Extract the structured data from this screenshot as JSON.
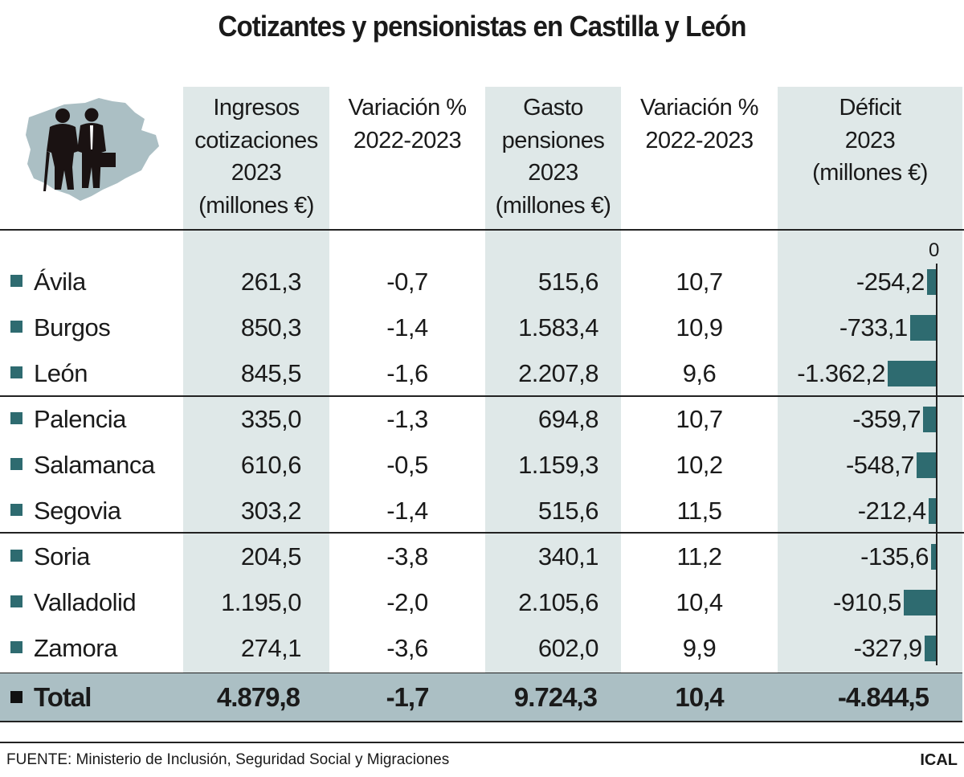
{
  "title": "Cotizantes y pensionistas en Castilla y León",
  "headers": [
    "Ingresos\ncotizaciones\n2023\n(millones €)",
    "Variación %\n2022-2023",
    "Gasto\npensiones\n2023\n(millones €)",
    "Variación %\n2022-2023",
    "Déficit\n2023\n(millones €)"
  ],
  "icon": "castilla-leon-map-with-pensioner-and-worker-icon",
  "colors": {
    "shade": "#dfe8e8",
    "bar": "#2e6b70",
    "total_band": "#abbfc4"
  },
  "chart_data": {
    "type": "table",
    "title": "Cotizantes y pensionistas en Castilla y León",
    "columns": [
      "Ingresos cotizaciones 2023 (millones €)",
      "Variación % 2022-2023",
      "Gasto pensiones 2023 (millones €)",
      "Variación % 2022-2023",
      "Déficit 2023 (millones €)"
    ],
    "bar_axis_label": "0",
    "rows": [
      {
        "name": "Ávila",
        "ingresos": "261,3",
        "var1": "-0,7",
        "gasto": "515,6",
        "var2": "10,7",
        "deficit": "-254,2",
        "deficit_value": -254.2
      },
      {
        "name": "Burgos",
        "ingresos": "850,3",
        "var1": "-1,4",
        "gasto": "1.583,4",
        "var2": "10,9",
        "deficit": "-733,1",
        "deficit_value": -733.1
      },
      {
        "name": "León",
        "ingresos": "845,5",
        "var1": "-1,6",
        "gasto": "2.207,8",
        "var2": "9,6",
        "deficit": "-1.362,2",
        "deficit_value": -1362.2
      },
      {
        "name": "Palencia",
        "ingresos": "335,0",
        "var1": "-1,3",
        "gasto": "694,8",
        "var2": "10,7",
        "deficit": "-359,7",
        "deficit_value": -359.7
      },
      {
        "name": "Salamanca",
        "ingresos": "610,6",
        "var1": "-0,5",
        "gasto": "1.159,3",
        "var2": "10,2",
        "deficit": "-548,7",
        "deficit_value": -548.7
      },
      {
        "name": "Segovia",
        "ingresos": "303,2",
        "var1": "-1,4",
        "gasto": "515,6",
        "var2": "11,5",
        "deficit": "-212,4",
        "deficit_value": -212.4
      },
      {
        "name": "Soria",
        "ingresos": "204,5",
        "var1": "-3,8",
        "gasto": "340,1",
        "var2": "11,2",
        "deficit": "-135,6",
        "deficit_value": -135.6
      },
      {
        "name": "Valladolid",
        "ingresos": "1.195,0",
        "var1": "-2,0",
        "gasto": "2.105,6",
        "var2": "10,4",
        "deficit": "-910,5",
        "deficit_value": -910.5
      },
      {
        "name": "Zamora",
        "ingresos": "274,1",
        "var1": "-3,6",
        "gasto": "602,0",
        "var2": "9,9",
        "deficit": "-327,9",
        "deficit_value": -327.9
      }
    ],
    "total": {
      "name": "Total",
      "ingresos": "4.879,8",
      "var1": "-1,7",
      "gasto": "9.724,3",
      "var2": "10,4",
      "deficit": "-4.844,5"
    }
  },
  "footer": {
    "source": "FUENTE: Ministerio de Inclusión, Seguridad Social y Migraciones",
    "brand": "ICAL"
  }
}
